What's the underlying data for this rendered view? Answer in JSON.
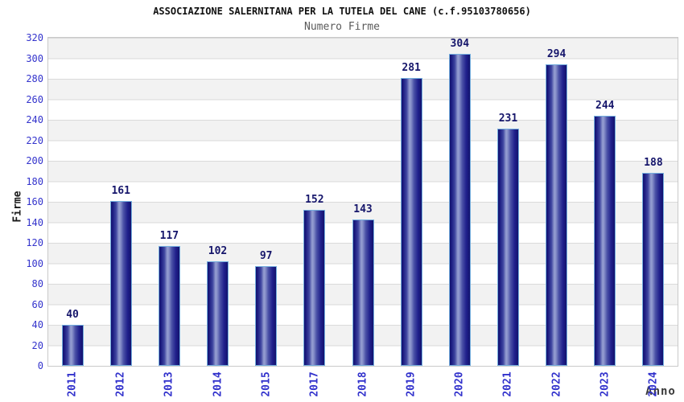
{
  "chart_data": {
    "type": "bar",
    "suptitle": "ASSOCIAZIONE SALERNITANA PER LA TUTELA DEL CANE (c.f.95103780656)",
    "title": "Numero Firme",
    "xlabel": "Anno",
    "ylabel": "Firme",
    "categories": [
      "2011",
      "2012",
      "2013",
      "2014",
      "2015",
      "2017",
      "2018",
      "2019",
      "2020",
      "2021",
      "2022",
      "2023",
      "2024"
    ],
    "values": [
      40,
      161,
      117,
      102,
      97,
      152,
      143,
      281,
      304,
      231,
      294,
      244,
      188
    ],
    "ylim": [
      0,
      320
    ],
    "ytick_step": 20,
    "grid": "horizontal alternating bands, 20-unit stripes",
    "legend": "none",
    "bar_labels_shown": true,
    "colors": {
      "bar_dark": "#12126d",
      "bar_light": "#97a0d2",
      "bar_border": "#74aede",
      "tick_text": "#3333cc",
      "value_label_text": "#16166b",
      "band_gray": "#f2f2f2",
      "band_white": "#ffffff",
      "plot_border": "#c9c9c9",
      "title_text": "#111111",
      "subtitle_text": "#5a5a5a",
      "axis_title_text": "#1a1a1a"
    }
  }
}
